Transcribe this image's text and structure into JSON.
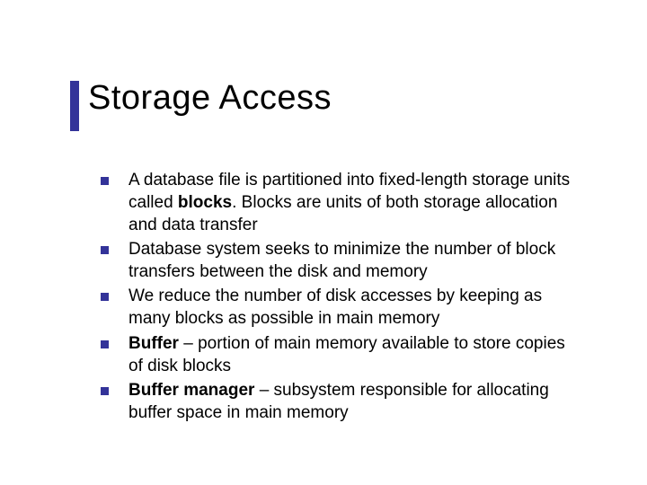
{
  "title": "Storage Access",
  "accent_color": "#333399",
  "bullet_marker_color": "#333399",
  "text_color": "#000000",
  "background_color": "#ffffff",
  "title_fontsize": 38,
  "body_fontsize": 19,
  "bullets": [
    {
      "prefix": "",
      "bold": "",
      "mid": "A database file is partitioned into fixed-length storage units called ",
      "bold2": "blocks",
      "suffix": ".  Blocks are units of both storage allocation and data transfer"
    },
    {
      "prefix": "",
      "bold": "",
      "mid": "Database system seeks to minimize the number of block transfers between the disk and memory",
      "bold2": "",
      "suffix": ""
    },
    {
      "prefix": "",
      "bold": "",
      "mid": "We reduce the number of disk accesses by keeping as many blocks as possible in main memory",
      "bold2": "",
      "suffix": ""
    },
    {
      "prefix": "",
      "bold": "Buffer",
      "mid": " – portion of main memory available to store copies of disk blocks",
      "bold2": "",
      "suffix": ""
    },
    {
      "prefix": "",
      "bold": "Buffer manager",
      "mid": " – subsystem responsible for allocating buffer space in main memory",
      "bold2": "",
      "suffix": ""
    }
  ]
}
